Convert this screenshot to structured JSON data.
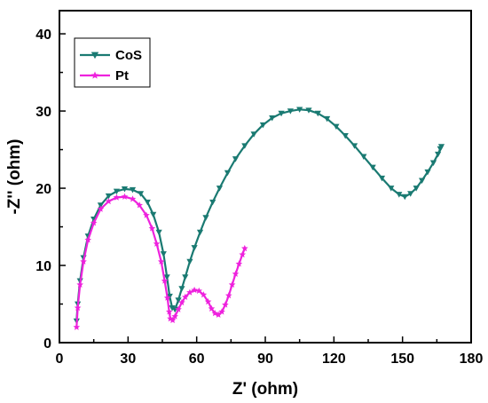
{
  "chart_data": {
    "type": "line",
    "title": "",
    "xlabel": "Z' (ohm)",
    "ylabel": "-Z'' (ohm)",
    "xlim": [
      0,
      180
    ],
    "ylim": [
      0,
      43
    ],
    "xticks": [
      0,
      30,
      60,
      90,
      120,
      150,
      180
    ],
    "yticks": [
      0,
      10,
      20,
      30,
      40
    ],
    "grid": false,
    "legend": "top-left",
    "series": [
      {
        "name": "CoS",
        "color": "#1a7a72",
        "marker": "triangle-down",
        "points": [
          [
            7.5,
            2.8
          ],
          [
            8.0,
            5.0
          ],
          [
            9.0,
            8.0
          ],
          [
            10.5,
            11.0
          ],
          [
            12.5,
            13.8
          ],
          [
            15.0,
            16.0
          ],
          [
            18.0,
            17.8
          ],
          [
            21.5,
            19.0
          ],
          [
            25.0,
            19.6
          ],
          [
            28.5,
            19.9
          ],
          [
            32.0,
            19.8
          ],
          [
            35.5,
            19.3
          ],
          [
            38.5,
            18.2
          ],
          [
            41.0,
            16.6
          ],
          [
            43.5,
            14.3
          ],
          [
            45.5,
            11.5
          ],
          [
            47.0,
            8.5
          ],
          [
            48.2,
            6.0
          ],
          [
            49.3,
            4.5
          ],
          [
            50.5,
            4.3
          ],
          [
            52.0,
            5.5
          ],
          [
            53.5,
            7.0
          ],
          [
            55.0,
            8.5
          ],
          [
            57.0,
            10.5
          ],
          [
            59.0,
            12.3
          ],
          [
            61.5,
            14.3
          ],
          [
            64.0,
            16.2
          ],
          [
            67.0,
            18.2
          ],
          [
            70.0,
            20.0
          ],
          [
            73.5,
            22.0
          ],
          [
            77.0,
            23.8
          ],
          [
            81.0,
            25.5
          ],
          [
            85.0,
            27.0
          ],
          [
            89.0,
            28.2
          ],
          [
            93.0,
            29.1
          ],
          [
            97.0,
            29.7
          ],
          [
            101.0,
            30.0
          ],
          [
            105.0,
            30.2
          ],
          [
            109.0,
            30.1
          ],
          [
            113.0,
            29.7
          ],
          [
            117.0,
            29.0
          ],
          [
            121.0,
            28.0
          ],
          [
            125.0,
            26.8
          ],
          [
            129.0,
            25.5
          ],
          [
            133.0,
            24.1
          ],
          [
            137.0,
            22.7
          ],
          [
            141.0,
            21.3
          ],
          [
            145.0,
            20.0
          ],
          [
            148.5,
            19.2
          ],
          [
            151.0,
            18.9
          ],
          [
            153.5,
            19.3
          ],
          [
            156.0,
            20.0
          ],
          [
            158.5,
            21.0
          ],
          [
            161.0,
            22.1
          ],
          [
            163.5,
            23.3
          ],
          [
            165.5,
            24.4
          ],
          [
            166.5,
            25.1
          ],
          [
            167.0,
            25.4
          ]
        ]
      },
      {
        "name": "Pt",
        "color": "#ee22dd",
        "marker": "star",
        "points": [
          [
            7.5,
            2.0
          ],
          [
            8.0,
            4.5
          ],
          [
            9.0,
            7.5
          ],
          [
            10.5,
            10.5
          ],
          [
            12.5,
            13.3
          ],
          [
            15.0,
            15.5
          ],
          [
            18.0,
            17.3
          ],
          [
            21.5,
            18.3
          ],
          [
            25.0,
            18.8
          ],
          [
            28.5,
            18.9
          ],
          [
            32.0,
            18.6
          ],
          [
            35.0,
            17.8
          ],
          [
            38.0,
            16.5
          ],
          [
            40.5,
            14.8
          ],
          [
            42.5,
            12.8
          ],
          [
            44.5,
            10.5
          ],
          [
            46.0,
            8.0
          ],
          [
            47.2,
            5.8
          ],
          [
            48.0,
            4.0
          ],
          [
            48.5,
            3.1
          ],
          [
            49.5,
            2.9
          ],
          [
            50.5,
            3.4
          ],
          [
            52.0,
            4.3
          ],
          [
            53.5,
            5.2
          ],
          [
            55.0,
            5.9
          ],
          [
            57.0,
            6.5
          ],
          [
            59.0,
            6.8
          ],
          [
            61.0,
            6.7
          ],
          [
            63.0,
            6.2
          ],
          [
            65.0,
            5.3
          ],
          [
            66.5,
            4.4
          ],
          [
            68.0,
            3.8
          ],
          [
            69.5,
            3.6
          ],
          [
            71.0,
            4.0
          ],
          [
            72.5,
            4.9
          ],
          [
            74.0,
            6.1
          ],
          [
            75.5,
            7.5
          ],
          [
            77.0,
            8.9
          ],
          [
            78.5,
            10.2
          ],
          [
            80.0,
            11.4
          ],
          [
            81.0,
            12.2
          ]
        ]
      }
    ]
  }
}
